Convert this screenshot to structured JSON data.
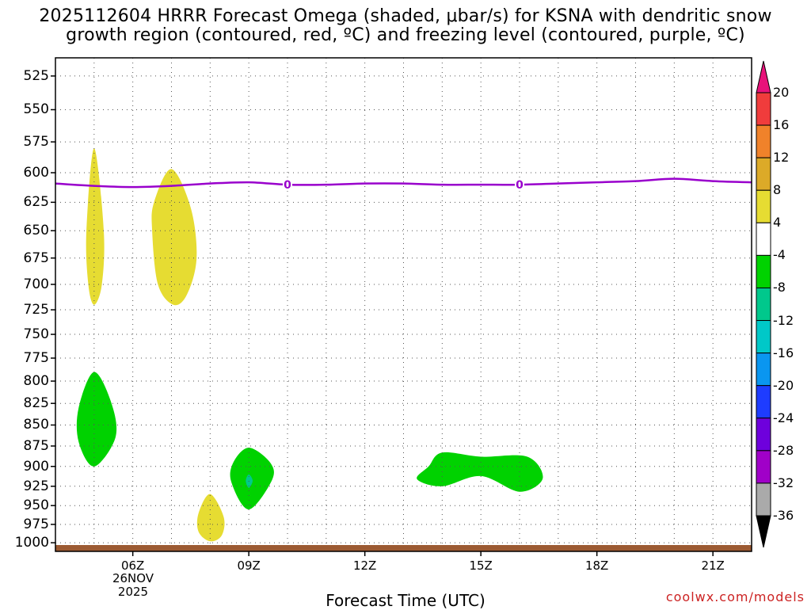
{
  "title_line1": "2025112604 HRRR Forecast Omega (shaded, μbar/s) for KSNA with dendritic snow",
  "title_line2": "growth region (contoured, red, ºC) and freezing level (contoured, purple, ºC)",
  "xaxis_title": "Forecast Time (UTC)",
  "credit": "coolwx.com/models",
  "date_label_line1": "26NOV",
  "date_label_line2": "2025",
  "chart_data": {
    "type": "heatmap",
    "title": "2025112604 HRRR Forecast Omega (shaded, μbar/s) for KSNA with dendritic snow growth region (contoured, red, ºC) and freezing level (contoured, purple, ºC)",
    "xlabel": "Forecast Time (UTC)",
    "ylabel": "",
    "x_ticks": [
      "06Z",
      "09Z",
      "12Z",
      "15Z",
      "18Z",
      "21Z"
    ],
    "x_tick_hours": [
      6,
      9,
      12,
      15,
      18,
      21
    ],
    "xlim_hours": [
      4,
      22
    ],
    "y_ticks": [
      525,
      550,
      575,
      600,
      625,
      650,
      675,
      700,
      725,
      750,
      775,
      800,
      825,
      850,
      875,
      900,
      925,
      950,
      975,
      1000
    ],
    "ylim": [
      1012,
      512
    ],
    "grid": true,
    "colorbar": {
      "labels": [
        "20",
        "16",
        "12",
        "8",
        "4",
        "-4",
        "-8",
        "-12",
        "-16",
        "-20",
        "-24",
        "-28",
        "-32",
        "-36"
      ],
      "colors": [
        "#e8127a",
        "#f03c3c",
        "#f0822a",
        "#dcaa28",
        "#e6dc32",
        "#ffffff",
        "#00d200",
        "#00c88c",
        "#00c8c8",
        "#0a96f0",
        "#1e3cff",
        "#6e00dc",
        "#a000c8",
        "#aaaaaa",
        "#000000"
      ]
    },
    "freezing_level": {
      "label": "0",
      "color": "#9900cc",
      "hours": [
        4.0,
        5.0,
        6.0,
        7.0,
        8.0,
        9.0,
        10.0,
        11.0,
        12.0,
        13.0,
        14.0,
        15.0,
        16.0,
        17.0,
        18.0,
        19.0,
        20.0,
        21.0,
        22.0
      ],
      "pressure": [
        609,
        611,
        612,
        611,
        609,
        608,
        610,
        610,
        609,
        609,
        610,
        610,
        610,
        609,
        608,
        607,
        605,
        607,
        608
      ]
    },
    "omega_regions": [
      {
        "level": "4 to 8",
        "color": "#e6dc32",
        "points": [
          [
            5.0,
            580
          ],
          [
            5.25,
            650
          ],
          [
            5.2,
            700
          ],
          [
            5.0,
            720
          ],
          [
            4.85,
            700
          ],
          [
            4.8,
            650
          ]
        ]
      },
      {
        "level": "4 to 8",
        "color": "#e6dc32",
        "points": [
          [
            7.0,
            597
          ],
          [
            7.5,
            630
          ],
          [
            7.65,
            675
          ],
          [
            7.4,
            710
          ],
          [
            7.05,
            720
          ],
          [
            6.65,
            700
          ],
          [
            6.5,
            650
          ],
          [
            6.55,
            625
          ]
        ]
      },
      {
        "level": "-4 to -8",
        "color": "#00d200",
        "points": [
          [
            5.0,
            790
          ],
          [
            5.45,
            825
          ],
          [
            5.55,
            865
          ],
          [
            5.0,
            900
          ],
          [
            4.6,
            870
          ],
          [
            4.6,
            830
          ]
        ]
      },
      {
        "level": "4 to 8",
        "color": "#e6dc32",
        "points": [
          [
            8.0,
            935
          ],
          [
            8.35,
            965
          ],
          [
            8.3,
            990
          ],
          [
            8.0,
            998
          ],
          [
            7.7,
            985
          ],
          [
            7.7,
            960
          ]
        ]
      },
      {
        "level": "-4 to -8",
        "color": "#00d200",
        "points": [
          [
            9.0,
            877
          ],
          [
            9.55,
            895
          ],
          [
            9.6,
            917
          ],
          [
            9.0,
            955
          ],
          [
            8.55,
            920
          ],
          [
            8.6,
            895
          ]
        ]
      },
      {
        "level": "-8 to -12",
        "color": "#00c88c",
        "points": [
          [
            9.0,
            910
          ],
          [
            9.1,
            918
          ],
          [
            9.0,
            927
          ],
          [
            8.92,
            918
          ]
        ]
      },
      {
        "level": "-4 to -8",
        "color": "#00d200",
        "points": [
          [
            13.65,
            900
          ],
          [
            14.0,
            883
          ],
          [
            15.0,
            888
          ],
          [
            16.2,
            888
          ],
          [
            16.6,
            915
          ],
          [
            16.0,
            932
          ],
          [
            15.0,
            912
          ],
          [
            14.0,
            925
          ],
          [
            13.35,
            916
          ]
        ]
      }
    ],
    "terrain": {
      "color": "#9c5a32",
      "pressure": 1012
    }
  }
}
